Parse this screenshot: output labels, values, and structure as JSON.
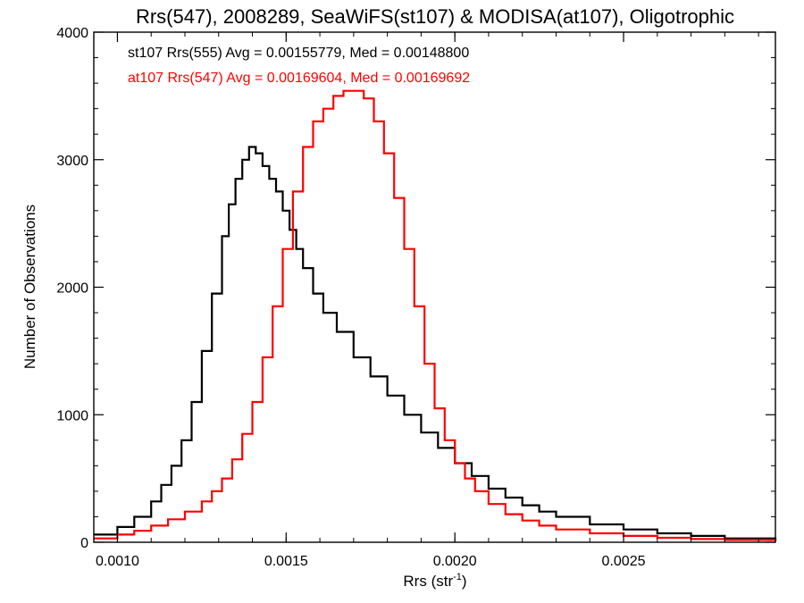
{
  "chart_data": {
    "type": "line",
    "title": "Rrs(547), 2008289, SeaWiFS(st107) & MODISA(at107), Oligotrophic",
    "xlabel": {
      "base": "Rrs (str",
      "sup": "-1",
      "end": ")"
    },
    "ylabel": "Number of Observations",
    "xlim": [
      0.00093,
      0.00295
    ],
    "ylim": [
      0,
      4000
    ],
    "xticks": [
      {
        "value": 0.001,
        "label": "0.0010"
      },
      {
        "value": 0.0015,
        "label": "0.0015"
      },
      {
        "value": 0.002,
        "label": "0.0020"
      },
      {
        "value": 0.0025,
        "label": "0.0025"
      }
    ],
    "yticks": [
      {
        "value": 0,
        "label": "0"
      },
      {
        "value": 1000,
        "label": "1000"
      },
      {
        "value": 2000,
        "label": "2000"
      },
      {
        "value": 3000,
        "label": "3000"
      },
      {
        "value": 4000,
        "label": "4000"
      }
    ],
    "grid": false,
    "annotations": [
      {
        "text": "st107 Rrs(555) Avg = 0.00155779, Med = 0.00148800",
        "color": "#000000"
      },
      {
        "text": "at107 Rrs(547) Avg = 0.00169604, Med = 0.00169692",
        "color": "#ff0000"
      }
    ],
    "series": [
      {
        "color": "#000000",
        "style": "step",
        "x": [
          0.00093,
          0.001,
          0.00105,
          0.0011,
          0.00113,
          0.00116,
          0.00119,
          0.00122,
          0.00125,
          0.00128,
          0.00131,
          0.00133,
          0.00135,
          0.00137,
          0.00139,
          0.00141,
          0.00143,
          0.00145,
          0.00147,
          0.00149,
          0.00151,
          0.00153,
          0.00155,
          0.00158,
          0.00161,
          0.00165,
          0.0017,
          0.00175,
          0.0018,
          0.00185,
          0.0019,
          0.00195,
          0.002,
          0.00205,
          0.0021,
          0.00215,
          0.0022,
          0.00225,
          0.0023,
          0.0024,
          0.0025,
          0.0026,
          0.0027,
          0.0028,
          0.00295
        ],
        "y": [
          60,
          120,
          200,
          320,
          450,
          600,
          800,
          1100,
          1500,
          1950,
          2400,
          2650,
          2850,
          3000,
          3100,
          3050,
          2950,
          2850,
          2750,
          2600,
          2450,
          2300,
          2150,
          1950,
          1800,
          1650,
          1450,
          1300,
          1150,
          1000,
          860,
          740,
          620,
          520,
          420,
          350,
          290,
          240,
          200,
          140,
          100,
          70,
          50,
          30,
          15
        ]
      },
      {
        "color": "#ff0000",
        "style": "step",
        "x": [
          0.00093,
          0.001,
          0.00105,
          0.0011,
          0.00115,
          0.0012,
          0.00125,
          0.00128,
          0.00131,
          0.00134,
          0.00137,
          0.0014,
          0.00143,
          0.00146,
          0.00149,
          0.00152,
          0.00155,
          0.00158,
          0.00161,
          0.00164,
          0.00167,
          0.0017,
          0.00173,
          0.00176,
          0.00179,
          0.00182,
          0.00185,
          0.00188,
          0.00191,
          0.00194,
          0.00197,
          0.002,
          0.00203,
          0.00206,
          0.0021,
          0.00215,
          0.0022,
          0.00225,
          0.0023,
          0.0024,
          0.0025,
          0.0026,
          0.0027,
          0.0028,
          0.00295
        ],
        "y": [
          30,
          60,
          90,
          130,
          180,
          240,
          320,
          400,
          500,
          650,
          850,
          1100,
          1450,
          1850,
          2300,
          2750,
          3100,
          3300,
          3400,
          3500,
          3540,
          3540,
          3480,
          3300,
          3050,
          2700,
          2300,
          1850,
          1400,
          1050,
          800,
          620,
          500,
          400,
          300,
          220,
          170,
          130,
          100,
          70,
          50,
          35,
          25,
          18,
          10
        ]
      }
    ]
  }
}
